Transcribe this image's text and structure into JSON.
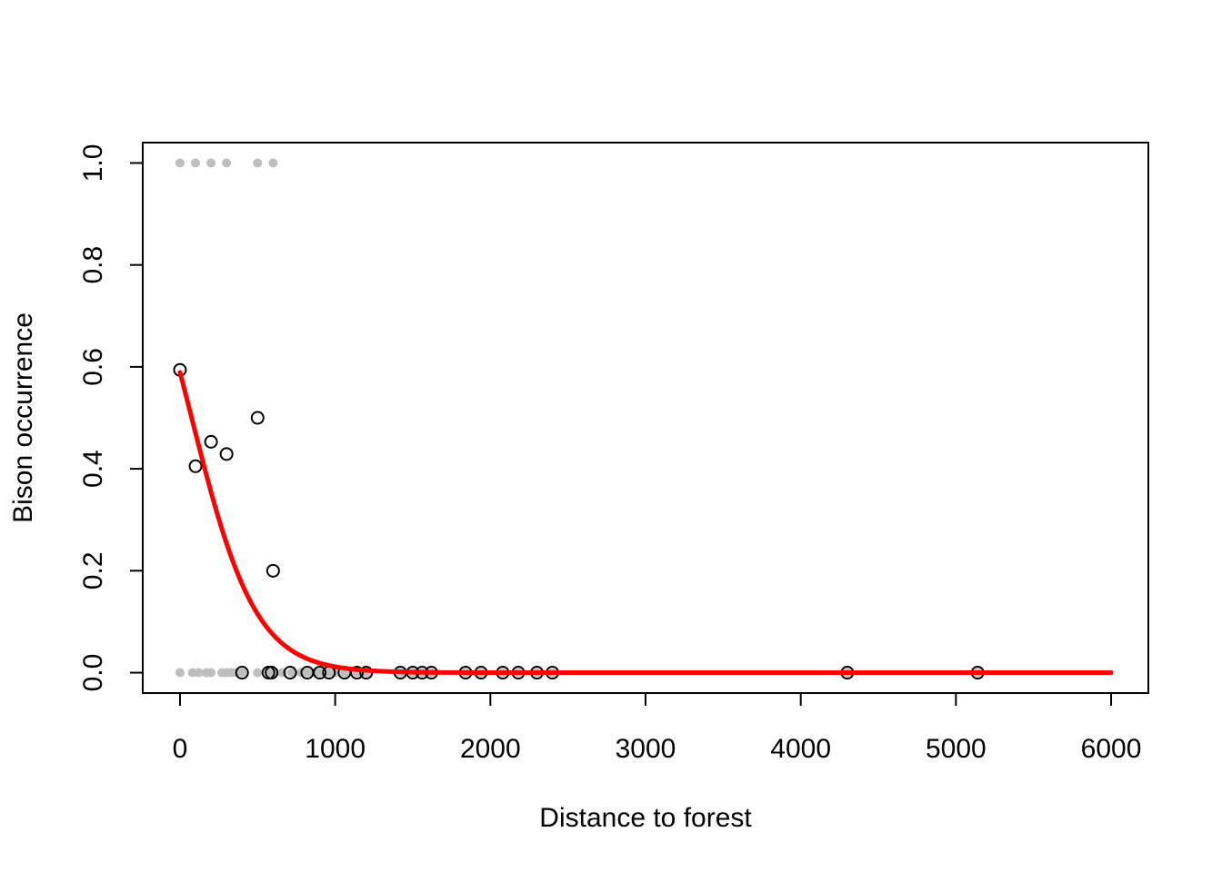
{
  "chart_data": {
    "type": "scatter",
    "xlabel": "Distance to forest",
    "ylabel": "Bison occurrence",
    "xlim": [
      -240,
      6240
    ],
    "ylim": [
      -0.04,
      1.04
    ],
    "x_ticks": [
      0,
      1000,
      2000,
      3000,
      4000,
      5000,
      6000
    ],
    "y_ticks": [
      0.0,
      0.2,
      0.4,
      0.6,
      0.8,
      1.0
    ],
    "x_tick_labels": [
      "0",
      "1000",
      "2000",
      "3000",
      "4000",
      "5000",
      "6000"
    ],
    "y_tick_labels": [
      "0.0",
      "0.2",
      "0.4",
      "0.6",
      "0.8",
      "1.0"
    ],
    "grid": false,
    "legend": "none",
    "series": [
      {
        "kind": "raw-observations",
        "marker": "filled-circle",
        "color": "#BEBEBE",
        "points": [
          [
            0,
            1
          ],
          [
            100,
            1
          ],
          [
            200,
            1
          ],
          [
            300,
            1
          ],
          [
            500,
            1
          ],
          [
            600,
            1
          ],
          [
            0,
            0
          ],
          [
            80,
            0
          ],
          [
            120,
            0
          ],
          [
            170,
            0
          ],
          [
            200,
            0
          ],
          [
            270,
            0
          ],
          [
            300,
            0
          ],
          [
            330,
            0
          ],
          [
            360,
            0
          ],
          [
            400,
            0
          ],
          [
            500,
            0
          ],
          [
            570,
            0
          ],
          [
            610,
            0
          ],
          [
            660,
            0
          ],
          [
            720,
            0
          ],
          [
            780,
            0
          ],
          [
            820,
            0
          ],
          [
            870,
            0
          ],
          [
            900,
            0
          ],
          [
            960,
            0
          ],
          [
            1000,
            0
          ],
          [
            1060,
            0
          ],
          [
            1140,
            0
          ],
          [
            1200,
            0
          ],
          [
            1420,
            0
          ],
          [
            1500,
            0
          ],
          [
            1560,
            0
          ],
          [
            1620,
            0
          ],
          [
            1840,
            0
          ],
          [
            1940,
            0
          ],
          [
            2080,
            0
          ],
          [
            2180,
            0
          ],
          [
            2300,
            0
          ],
          [
            2400,
            0
          ],
          [
            4300,
            0
          ],
          [
            5140,
            0
          ]
        ]
      },
      {
        "kind": "binned-proportion",
        "marker": "open-circle",
        "color": "#000000",
        "points": [
          [
            0,
            0.594
          ],
          [
            100,
            0.405
          ],
          [
            200,
            0.453
          ],
          [
            300,
            0.429
          ],
          [
            500,
            0.5
          ],
          [
            600,
            0.2
          ],
          [
            400,
            0
          ],
          [
            570,
            0
          ],
          [
            590,
            0
          ],
          [
            710,
            0
          ],
          [
            820,
            0
          ],
          [
            900,
            0
          ],
          [
            960,
            0
          ],
          [
            1060,
            0
          ],
          [
            1140,
            0
          ],
          [
            1200,
            0
          ],
          [
            1420,
            0
          ],
          [
            1500,
            0
          ],
          [
            1560,
            0
          ],
          [
            1620,
            0
          ],
          [
            1840,
            0
          ],
          [
            1940,
            0
          ],
          [
            2080,
            0
          ],
          [
            2180,
            0
          ],
          [
            2300,
            0
          ],
          [
            2400,
            0
          ],
          [
            4300,
            0
          ],
          [
            5140,
            0
          ]
        ]
      },
      {
        "kind": "fitted-curve",
        "marker": "line",
        "color": "#FF0000",
        "model": "logistic",
        "intercept": 0.36,
        "slope": -0.0048,
        "x_range": [
          0,
          6000
        ]
      }
    ]
  }
}
